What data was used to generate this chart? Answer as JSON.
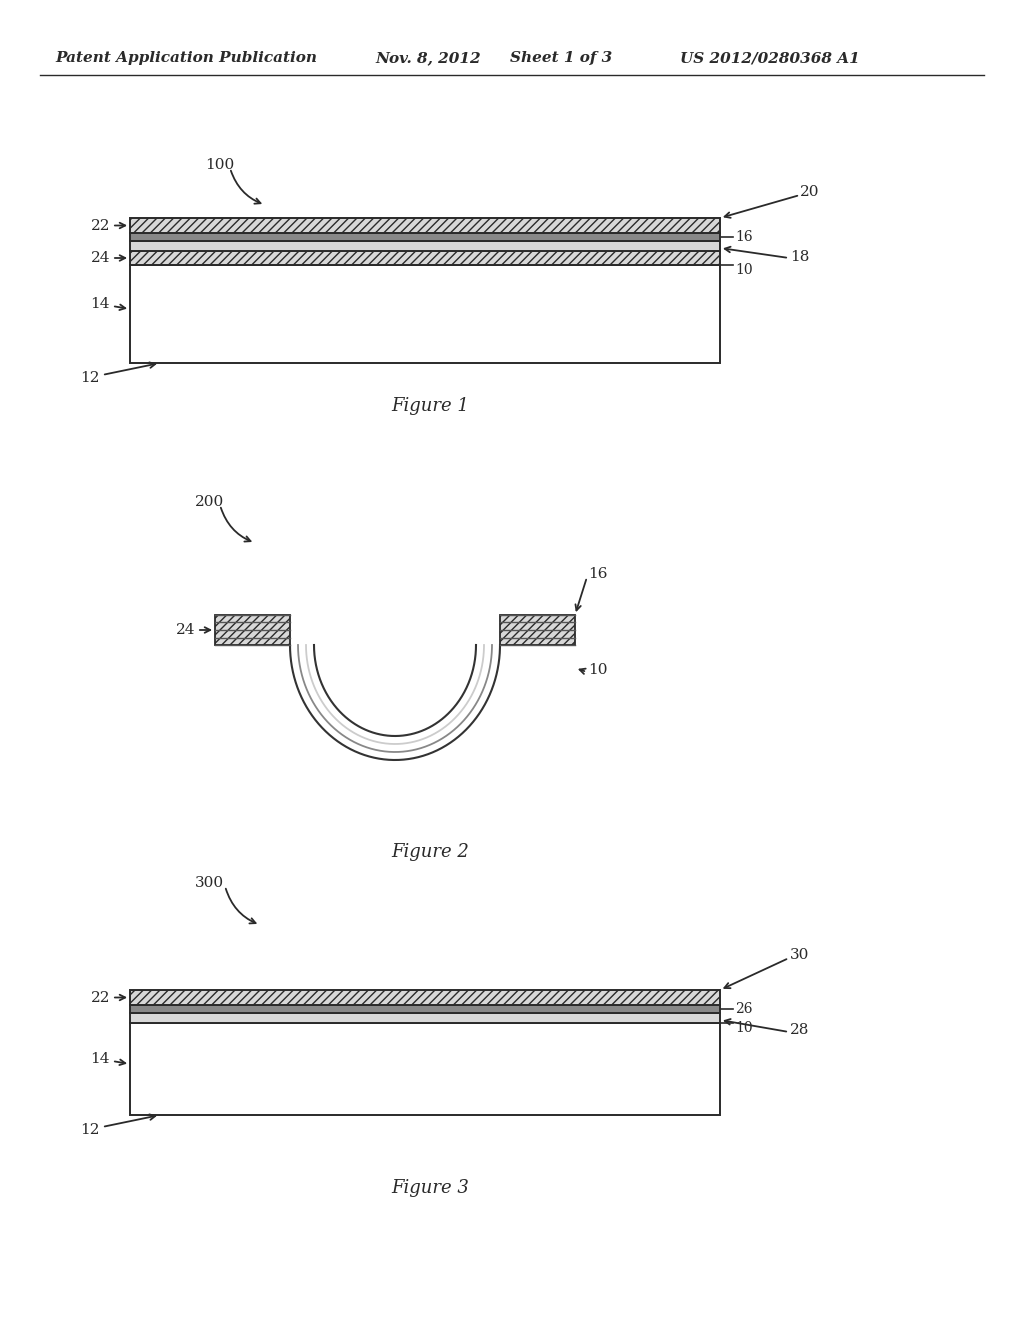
{
  "background_color": "#ffffff",
  "header_text": "Patent Application Publication",
  "header_date": "Nov. 8, 2012",
  "header_sheet": "Sheet 1 of 3",
  "header_patent": "US 2012/0280368 A1",
  "fig1_caption": "Figure 1",
  "fig2_caption": "Figure 2",
  "fig3_caption": "Figure 3",
  "line_color": "#2a2a2a",
  "text_color": "#2a2a2a",
  "fig1_label": "100",
  "fig2_label": "200",
  "fig3_label": "300",
  "layer_gray_light": "#d8d8d8",
  "layer_gray_dark": "#888888",
  "layer_white": "#ffffff",
  "hatch_pattern": "//////"
}
